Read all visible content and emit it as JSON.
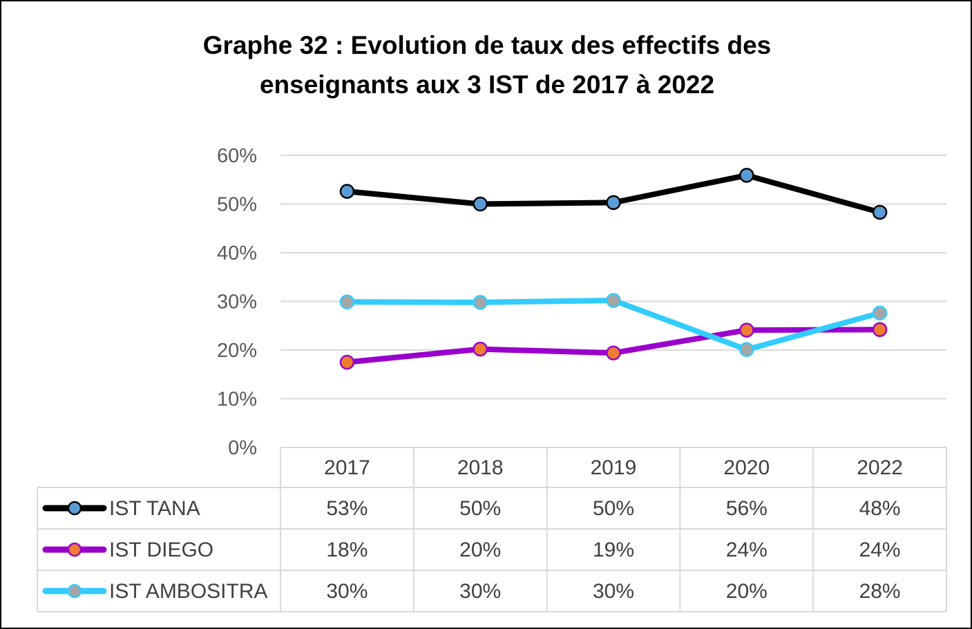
{
  "chart_data": {
    "type": "line",
    "title": "Graphe 32 : Evolution de taux des effectifs des enseignants aux 3 IST de 2017 à 2022",
    "title_lines": [
      "Graphe 32 : Evolution de taux des effectifs des",
      "enseignants aux 3 IST de 2017 à 2022"
    ],
    "categories": [
      "2017",
      "2018",
      "2019",
      "2020",
      "2022"
    ],
    "ylim": [
      0,
      60
    ],
    "yticks": [
      "0%",
      "10%",
      "20%",
      "30%",
      "40%",
      "50%",
      "60%"
    ],
    "grid": true,
    "legend_placement": "data-table",
    "series": [
      {
        "name": "IST TANA",
        "values": [
          52.6,
          50.0,
          50.3,
          55.9,
          48.3
        ],
        "labels": [
          "53%",
          "50%",
          "50%",
          "56%",
          "48%"
        ],
        "line_color": "#000000",
        "marker_color": "#5b9bd5"
      },
      {
        "name": "IST DIEGO",
        "values": [
          17.5,
          20.2,
          19.4,
          24.1,
          24.2
        ],
        "labels": [
          "18%",
          "20%",
          "19%",
          "24%",
          "24%"
        ],
        "line_color": "#9900cc",
        "marker_color": "#ed7d31"
      },
      {
        "name": "IST AMBOSITRA",
        "values": [
          29.9,
          29.8,
          30.2,
          20.1,
          27.6
        ],
        "labels": [
          "30%",
          "30%",
          "30%",
          "20%",
          "28%"
        ],
        "line_color": "#33ccff",
        "marker_color": "#a5a5a5"
      }
    ]
  }
}
